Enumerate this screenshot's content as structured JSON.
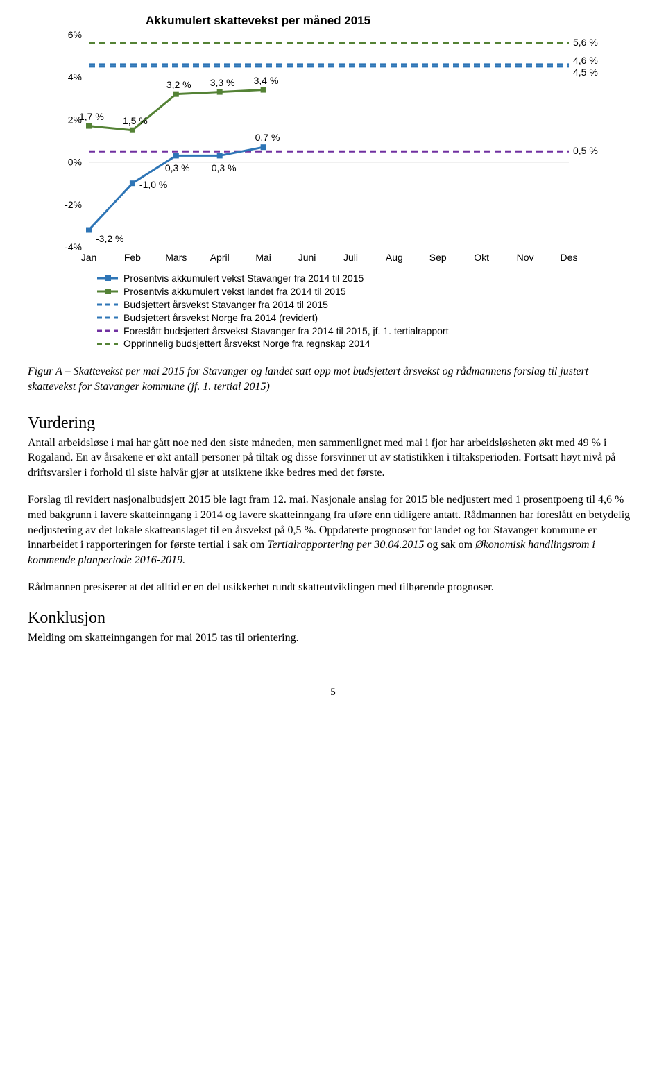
{
  "chart": {
    "title": "Akkumulert skattevekst per måned 2015",
    "type": "line",
    "months": [
      "Jan",
      "Feb",
      "Mars",
      "April",
      "Mai",
      "Juni",
      "Juli",
      "Aug",
      "Sep",
      "Okt",
      "Nov",
      "Des"
    ],
    "ylim": [
      -4,
      6
    ],
    "ytick_step": 2,
    "yticks": [
      "6%",
      "4%",
      "2%",
      "0%",
      "-2%",
      "-4%"
    ],
    "grid_color": "#888888",
    "background_color": "#ffffff",
    "series": {
      "stavanger_actual": {
        "color": "#2e75b6",
        "style": "solid",
        "values": [
          -3.2,
          -1.0,
          0.3,
          0.3,
          0.7
        ],
        "labels": [
          "-3,2 %",
          "-1,0 %",
          "0,3 %",
          "0,3 %",
          "0,7 %"
        ]
      },
      "landet_actual": {
        "color": "#548235",
        "style": "solid",
        "values": [
          1.7,
          1.5,
          3.2,
          3.3,
          3.4
        ],
        "labels": [
          "1,7 %",
          "1,5 %",
          "3,2 %",
          "3,3 %",
          "3,4 %"
        ]
      },
      "budsjett_stavanger": {
        "color": "#2e75b6",
        "style": "dashed",
        "value": 4.5,
        "label": "4,5 %"
      },
      "budsjett_norge_rev": {
        "color": "#2e75b6",
        "style": "dashed",
        "value": 4.6,
        "label": "4,6 %"
      },
      "foreslatt_stavanger": {
        "color": "#7030a0",
        "style": "dashed",
        "value": 0.5,
        "label": "0,5 %"
      },
      "opprinnelig_norge": {
        "color": "#548235",
        "style": "dashed",
        "value": 5.6,
        "label": "5,6 %"
      }
    },
    "legend": [
      {
        "text": "Prosentvis akkumulert vekst Stavanger fra 2014 til 2015",
        "color": "#2e75b6",
        "style": "solid"
      },
      {
        "text": "Prosentvis akkumulert vekst landet fra 2014 til 2015",
        "color": "#548235",
        "style": "solid"
      },
      {
        "text": "Budsjettert årsvekst Stavanger fra 2014 til 2015",
        "color": "#2e75b6",
        "style": "dashed"
      },
      {
        "text": "Budsjettert årsvekst Norge fra 2014 (revidert)",
        "color": "#2e75b6",
        "style": "dashed"
      },
      {
        "text": "Foreslått budsjettert årsvekst Stavanger fra 2014 til 2015, jf. 1. tertialrapport",
        "color": "#7030a0",
        "style": "dashed"
      },
      {
        "text": "Opprinnelig budsjettert årsvekst Norge fra regnskap 2014",
        "color": "#548235",
        "style": "dashed"
      }
    ]
  },
  "caption": "Figur A – Skattevekst per mai 2015 for Stavanger og landet satt opp mot budsjettert årsvekst og rådmannens forslag til justert skattevekst for Stavanger kommune (jf. 1. tertial 2015)",
  "vurdering_heading": "Vurdering",
  "vurdering_p1": "Antall arbeidsløse i mai har gått noe ned den siste måneden, men sammenlignet med mai i fjor har arbeidsløsheten økt med 49 % i Rogaland. En av årsakene er økt antall personer på tiltak og disse forsvinner ut av statistikken i tiltaksperioden. Fortsatt høyt nivå på driftsvarsler i forhold til siste halvår gjør at utsiktene ikke bedres med det første.",
  "vurdering_p2_a": "Forslag til revidert nasjonalbudsjett 2015 ble lagt fram 12. mai. Nasjonale anslag for 2015 ble nedjustert med 1 prosentpoeng til 4,6 % med bakgrunn i lavere skatteinngang i 2014 og lavere skatteinngang fra uføre enn tidligere antatt. Rådmannen har foreslått en betydelig nedjustering av det lokale skatteanslaget til en årsvekst på 0,5 %. Oppdaterte prognoser for landet og for Stavanger kommune er innarbeidet i rapporteringen for første tertial i sak om ",
  "vurdering_p2_em1": "Tertialrapportering per 30.04.2015",
  "vurdering_p2_mid": " og sak om ",
  "vurdering_p2_em2": "Økonomisk handlingsrom i kommende planperiode 2016-2019.",
  "vurdering_p3": "Rådmannen presiserer at det alltid er en del usikkerhet rundt skatteutviklingen med tilhørende prognoser.",
  "konklusjon_heading": "Konklusjon",
  "konklusjon_p": "Melding om skatteinngangen for mai 2015 tas til orientering.",
  "page_number": "5"
}
